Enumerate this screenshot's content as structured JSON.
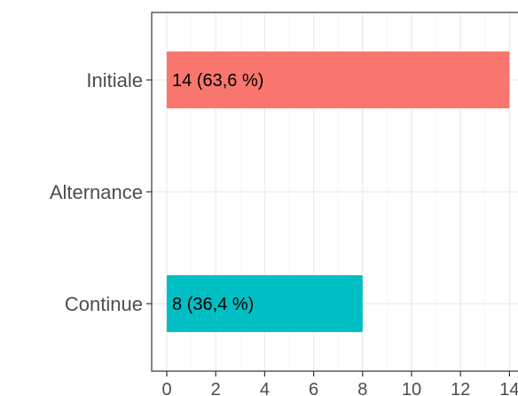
{
  "chart_data": {
    "type": "bar",
    "orientation": "horizontal",
    "categories": [
      "Initiale",
      "Alternance",
      "Continue"
    ],
    "values": [
      14,
      0,
      8
    ],
    "data_labels": [
      "14 (63,6 %)",
      "",
      "8 (36,4 %)"
    ],
    "colors": [
      "#F8766D",
      "#FFFFFF",
      "#00BFC4"
    ],
    "xticks": [
      "0",
      "2",
      "4",
      "6",
      "8",
      "10",
      "12",
      "14"
    ],
    "xlim": [
      0,
      14
    ],
    "grid": true,
    "title": "",
    "xlabel": "",
    "ylabel": ""
  }
}
